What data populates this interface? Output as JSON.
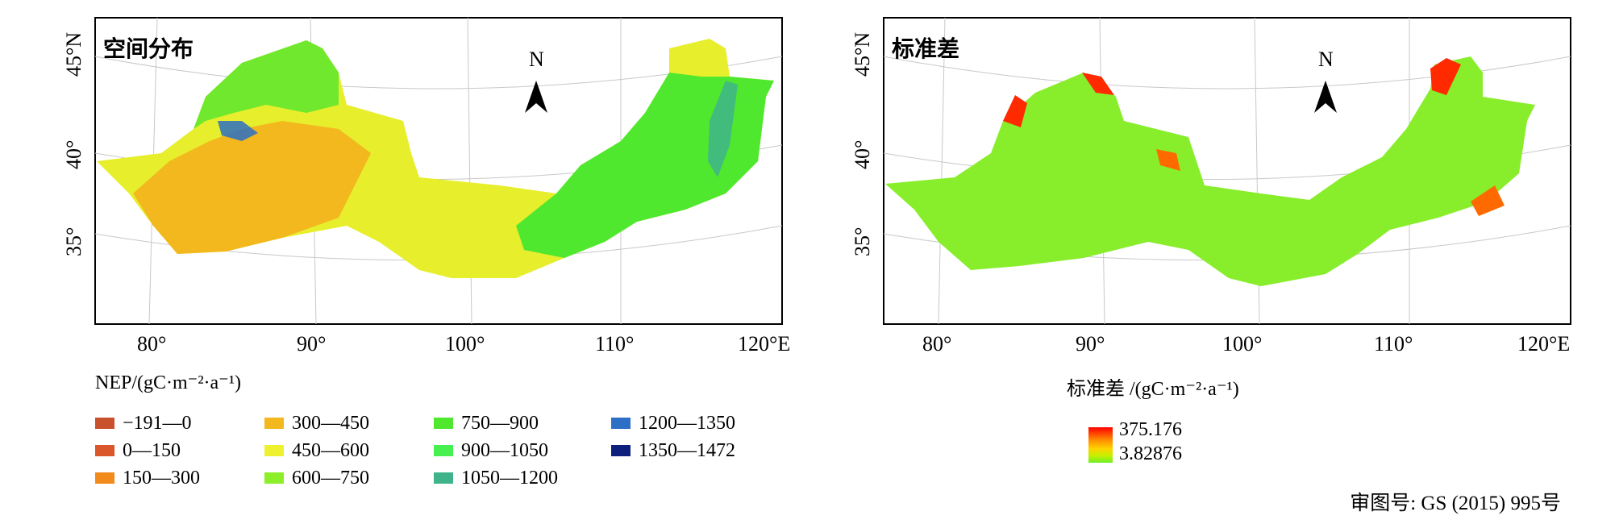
{
  "panels": [
    {
      "title": "空间分布",
      "north": "N",
      "lat_labels": [
        "45°N",
        "40°",
        "35°"
      ],
      "lon_labels": [
        "80°",
        "90°",
        "100°",
        "110°",
        "120°E"
      ]
    },
    {
      "title": "标准差",
      "north": "N",
      "lat_labels": [
        "45°N",
        "40°",
        "35°"
      ],
      "lon_labels": [
        "80°",
        "90°",
        "100°",
        "110°",
        "120°E"
      ]
    }
  ],
  "legend": {
    "title": "NEP/(gC·m⁻²·a⁻¹)",
    "classes": [
      {
        "label": "−191—0",
        "color": "#c8502d"
      },
      {
        "label": "0—150",
        "color": "#d9572a"
      },
      {
        "label": "150—300",
        "color": "#f28a1c"
      },
      {
        "label": "300—450",
        "color": "#f2b81e"
      },
      {
        "label": "450—600",
        "color": "#eef22e"
      },
      {
        "label": "600—750",
        "color": "#8cef2a"
      },
      {
        "label": "750—900",
        "color": "#4fe82e"
      },
      {
        "label": "900—1050",
        "color": "#45f04f"
      },
      {
        "label": "1050—1200",
        "color": "#3fb48a"
      },
      {
        "label": "1200—1350",
        "color": "#2d6fc4"
      },
      {
        "label": "1350—1472",
        "color": "#0f1f7c"
      }
    ]
  },
  "sd_legend": {
    "title": "标准差 /(gC·m⁻²·a⁻¹)",
    "max": "375.176",
    "min": "3.82876"
  },
  "approval": "审图号: GS (2015) 995号"
}
